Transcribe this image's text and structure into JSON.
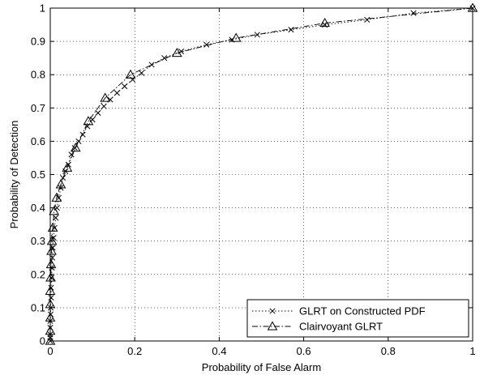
{
  "chart_data": {
    "type": "line",
    "xlabel": "Probability of False Alarm",
    "ylabel": "Probability of Detection",
    "xlim": [
      0,
      1
    ],
    "ylim": [
      0,
      1
    ],
    "xticks": [
      "0",
      "0.2",
      "0.4",
      "0.6",
      "0.8",
      "1"
    ],
    "yticks": [
      "0",
      "0.1",
      "0.2",
      "0.3",
      "0.4",
      "0.5",
      "0.6",
      "0.7",
      "0.8",
      "0.9",
      "1"
    ],
    "grid": true,
    "legend_position": "bottom-right",
    "series": [
      {
        "name": "GLRT on Constructed PDF",
        "marker": "x",
        "line_style": "dotted",
        "color": "#000000",
        "x": [
          0,
          0,
          0,
          0,
          0,
          0.001,
          0.001,
          0.002,
          0.002,
          0.003,
          0.004,
          0.005,
          0.006,
          0.008,
          0.01,
          0.013,
          0.016,
          0.02,
          0.025,
          0.03,
          0.036,
          0.043,
          0.05,
          0.058,
          0.067,
          0.077,
          0.088,
          0.1,
          0.113,
          0.127,
          0.142,
          0.158,
          0.176,
          0.195,
          0.216,
          0.24,
          0.27,
          0.31,
          0.37,
          0.43,
          0.49,
          0.57,
          0.65,
          0.75,
          0.86,
          1.0
        ],
        "y": [
          0,
          0.01,
          0.02,
          0.04,
          0.06,
          0.08,
          0.1,
          0.13,
          0.16,
          0.19,
          0.22,
          0.25,
          0.28,
          0.31,
          0.34,
          0.37,
          0.4,
          0.43,
          0.46,
          0.49,
          0.51,
          0.53,
          0.56,
          0.58,
          0.6,
          0.62,
          0.645,
          0.665,
          0.685,
          0.705,
          0.725,
          0.745,
          0.765,
          0.785,
          0.805,
          0.83,
          0.85,
          0.87,
          0.89,
          0.905,
          0.92,
          0.935,
          0.95,
          0.965,
          0.985,
          1.0
        ]
      },
      {
        "name": "Clairvoyant GLRT",
        "marker": "triangle",
        "line_style": "dashdot",
        "color": "#000000",
        "x": [
          0,
          0,
          0,
          0,
          0,
          0.001,
          0.002,
          0.003,
          0.004,
          0.006,
          0.009,
          0.015,
          0.025,
          0.04,
          0.06,
          0.09,
          0.13,
          0.19,
          0.3,
          0.44,
          0.65,
          1.0
        ],
        "y": [
          0,
          0.03,
          0.07,
          0.11,
          0.15,
          0.19,
          0.23,
          0.27,
          0.3,
          0.34,
          0.39,
          0.43,
          0.47,
          0.52,
          0.58,
          0.66,
          0.73,
          0.8,
          0.865,
          0.91,
          0.955,
          1.0
        ]
      }
    ]
  }
}
